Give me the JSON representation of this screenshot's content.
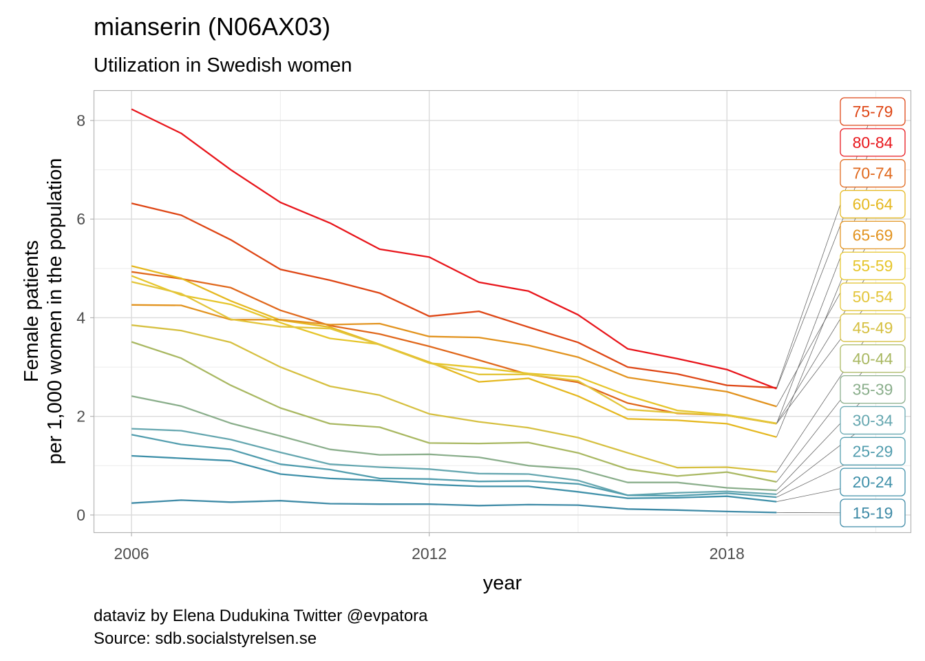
{
  "chart_data": {
    "type": "line",
    "title": "mianserin (N06AX03)",
    "subtitle": "Utilization in Swedish women",
    "xlabel": "year",
    "ylabel": [
      "Female patients",
      "per 1,000 women in the population"
    ],
    "caption": [
      "dataviz by Elena Dudukina Twitter @evpatora",
      "Source: sdb.socialstyrelsen.se"
    ],
    "xlim": [
      2005.25,
      2021.7
    ],
    "ylim": [
      -0.35,
      8.6
    ],
    "x_ticks": [
      2006,
      2012,
      2018
    ],
    "y_ticks": [
      0,
      2,
      4,
      6,
      8
    ],
    "grid": true,
    "legend": "direct labels at right end of lines",
    "x": [
      2006,
      2007,
      2008,
      2009,
      2010,
      2011,
      2012,
      2013,
      2014,
      2015,
      2016,
      2017,
      2018,
      2019
    ],
    "series": [
      {
        "name": "75-79",
        "color": "#de4514",
        "values": [
          6.32,
          6.08,
          5.58,
          4.98,
          4.76,
          4.5,
          4.03,
          4.13,
          3.81,
          3.5,
          3.0,
          2.86,
          2.63,
          2.58
        ]
      },
      {
        "name": "80-84",
        "color": "#e8151b",
        "values": [
          8.23,
          7.74,
          7.0,
          6.34,
          5.92,
          5.39,
          5.23,
          4.72,
          4.54,
          4.06,
          3.37,
          3.17,
          2.95,
          2.56
        ]
      },
      {
        "name": "70-74",
        "color": "#e0681c",
        "values": [
          4.93,
          4.79,
          4.61,
          4.15,
          3.84,
          3.67,
          3.42,
          3.14,
          2.85,
          2.69,
          2.27,
          2.06,
          2.02,
          1.85
        ]
      },
      {
        "name": "60-64",
        "color": "#e5b820",
        "values": [
          5.05,
          4.8,
          4.34,
          3.95,
          3.81,
          3.46,
          3.1,
          2.7,
          2.77,
          2.41,
          1.95,
          1.92,
          1.85,
          1.58
        ]
      },
      {
        "name": "65-69",
        "color": "#e2931f",
        "values": [
          4.26,
          4.25,
          3.96,
          3.96,
          3.86,
          3.88,
          3.62,
          3.6,
          3.44,
          3.2,
          2.79,
          2.64,
          2.5,
          2.2
        ]
      },
      {
        "name": "55-59",
        "color": "#e6c52b",
        "values": [
          4.85,
          4.46,
          4.27,
          3.9,
          3.58,
          3.46,
          3.08,
          2.99,
          2.87,
          2.8,
          2.42,
          2.12,
          2.03,
          1.86
        ]
      },
      {
        "name": "50-54",
        "color": "#e3c53a",
        "values": [
          4.73,
          4.49,
          3.97,
          3.82,
          3.78,
          3.45,
          3.08,
          2.85,
          2.85,
          2.72,
          2.14,
          2.07,
          2.02,
          1.85
        ]
      },
      {
        "name": "45-49",
        "color": "#d6c041",
        "values": [
          3.85,
          3.74,
          3.5,
          3.0,
          2.61,
          2.43,
          2.05,
          1.89,
          1.77,
          1.57,
          1.26,
          0.96,
          0.97,
          0.87
        ]
      },
      {
        "name": "40-44",
        "color": "#a9b862",
        "values": [
          3.51,
          3.18,
          2.63,
          2.17,
          1.85,
          1.78,
          1.46,
          1.45,
          1.47,
          1.26,
          0.93,
          0.79,
          0.87,
          0.67
        ]
      },
      {
        "name": "35-39",
        "color": "#8aae8b",
        "values": [
          2.41,
          2.21,
          1.86,
          1.6,
          1.33,
          1.22,
          1.23,
          1.17,
          1.0,
          0.93,
          0.66,
          0.66,
          0.55,
          0.5
        ]
      },
      {
        "name": "30-34",
        "color": "#66a7b0",
        "values": [
          1.75,
          1.71,
          1.53,
          1.27,
          1.03,
          0.97,
          0.93,
          0.84,
          0.83,
          0.7,
          0.4,
          0.45,
          0.48,
          0.42
        ]
      },
      {
        "name": "25-29",
        "color": "#529dae",
        "values": [
          1.63,
          1.43,
          1.33,
          1.03,
          0.92,
          0.74,
          0.73,
          0.68,
          0.69,
          0.63,
          0.4,
          0.39,
          0.44,
          0.36
        ]
      },
      {
        "name": "20-24",
        "color": "#3f90a9",
        "values": [
          1.2,
          1.15,
          1.1,
          0.83,
          0.74,
          0.7,
          0.62,
          0.58,
          0.58,
          0.47,
          0.34,
          0.35,
          0.38,
          0.27
        ]
      },
      {
        "name": "15-19",
        "color": "#3e8aa6",
        "values": [
          0.24,
          0.3,
          0.26,
          0.29,
          0.23,
          0.22,
          0.22,
          0.19,
          0.21,
          0.2,
          0.12,
          0.1,
          0.07,
          0.05
        ]
      }
    ]
  }
}
